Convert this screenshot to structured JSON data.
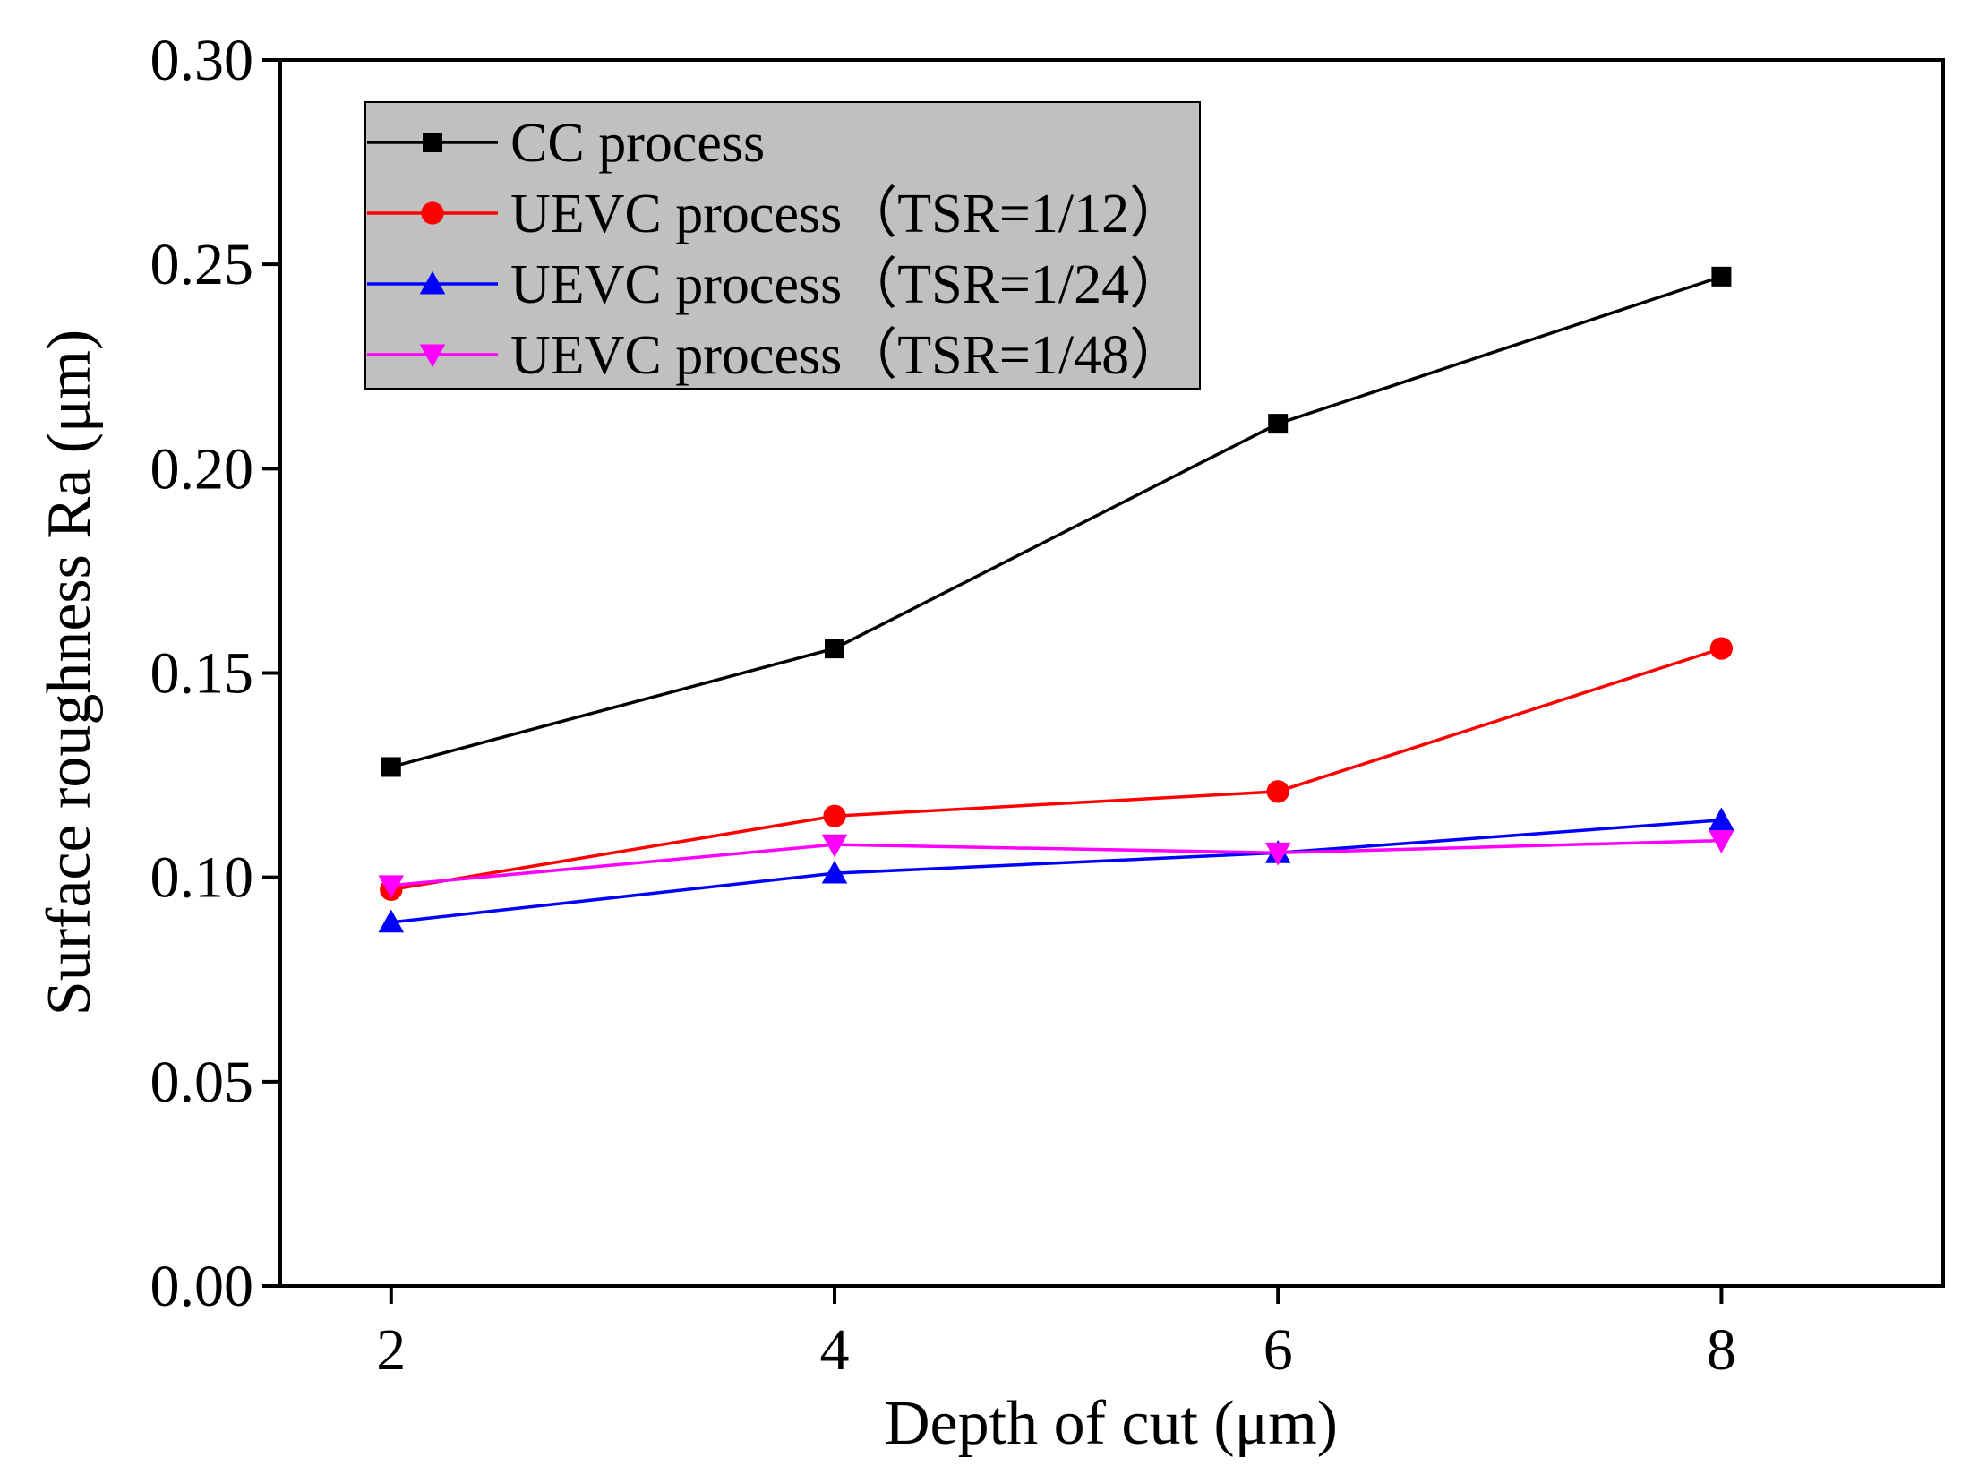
{
  "chart_data": {
    "type": "line",
    "xlabel": "Depth of cut (μm)",
    "ylabel": "Surface roughness Ra (μm)",
    "xlim": [
      1.5,
      9.0
    ],
    "ylim": [
      0.0,
      0.3
    ],
    "x_ticks": [
      "2",
      "4",
      "6",
      "8"
    ],
    "y_ticks": [
      "0.00",
      "0.05",
      "0.10",
      "0.15",
      "0.20",
      "0.25",
      "0.30"
    ],
    "x": [
      2,
      4,
      6,
      8
    ],
    "grid": false,
    "legend_position": "top-left",
    "series": [
      {
        "name": "CC process",
        "color": "#000000",
        "marker": "square",
        "values": [
          0.127,
          0.156,
          0.211,
          0.247
        ]
      },
      {
        "name": "UEVC process（TSR=1/12）",
        "color": "#ff0000",
        "marker": "circle",
        "values": [
          0.097,
          0.115,
          0.121,
          0.156
        ]
      },
      {
        "name": "UEVC process（TSR=1/24）",
        "color": "#0000ff",
        "marker": "triangle-up",
        "values": [
          0.089,
          0.101,
          0.106,
          0.114
        ]
      },
      {
        "name": "UEVC process（TSR=1/48）",
        "color": "#ff00ff",
        "marker": "triangle-down",
        "values": [
          0.098,
          0.108,
          0.106,
          0.109
        ]
      }
    ],
    "legend_background": "#c0c0c0"
  }
}
